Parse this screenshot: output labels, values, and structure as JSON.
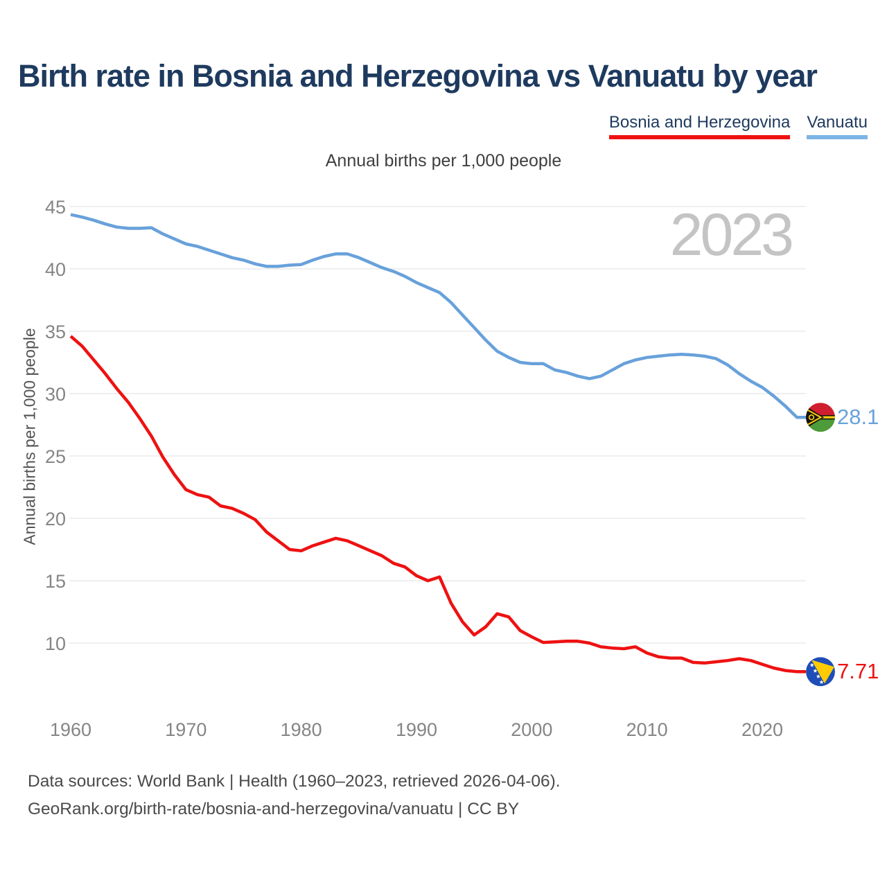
{
  "title": "Birth rate in Bosnia and Herzegovina vs Vanuatu by year",
  "subtitle": "Annual births per 1,000 people",
  "watermark": "2023",
  "y_axis_title": "Annual births per 1,000 people",
  "legend": [
    {
      "label": "Bosnia and Herzegovina",
      "color": "#ee1111"
    },
    {
      "label": "Vanuatu",
      "color": "#7cb5e5"
    }
  ],
  "footer": {
    "line1": "Data sources: World Bank | Health (1960–2023, retrieved 2026-04-06).",
    "line2": "GeoRank.org/birth-rate/bosnia-and-herzegovina/vanuatu | CC BY"
  },
  "chart_data": {
    "type": "line",
    "title": "Birth rate in Bosnia and Herzegovina vs Vanuatu by year",
    "subtitle": "Annual births per 1,000 people",
    "ylabel": "Annual births per 1,000 people",
    "xlim": [
      1960,
      2023
    ],
    "ylim": [
      10,
      45
    ],
    "grid": true,
    "legend_position": "top-right",
    "x_ticks": [
      1960,
      1970,
      1980,
      1990,
      2000,
      2010,
      2020
    ],
    "y_ticks": [
      10,
      15,
      20,
      25,
      30,
      35,
      40,
      45
    ],
    "x": [
      1960,
      1961,
      1962,
      1963,
      1964,
      1965,
      1966,
      1967,
      1968,
      1969,
      1970,
      1971,
      1972,
      1973,
      1974,
      1975,
      1976,
      1977,
      1978,
      1979,
      1980,
      1981,
      1982,
      1983,
      1984,
      1985,
      1986,
      1987,
      1988,
      1989,
      1990,
      1991,
      1992,
      1993,
      1994,
      1995,
      1996,
      1997,
      1998,
      1999,
      2000,
      2001,
      2002,
      2003,
      2004,
      2005,
      2006,
      2007,
      2008,
      2009,
      2010,
      2011,
      2012,
      2013,
      2014,
      2015,
      2016,
      2017,
      2018,
      2019,
      2020,
      2021,
      2022,
      2023
    ],
    "series": [
      {
        "name": "Vanuatu",
        "color": "#68a1db",
        "end_label": "28.1",
        "flag_icon": "vanuatu-flag-icon",
        "values": [
          44.35,
          44.15,
          43.9,
          43.6,
          43.35,
          43.25,
          43.25,
          43.3,
          42.8,
          42.4,
          42.0,
          41.8,
          41.5,
          41.2,
          40.9,
          40.7,
          40.4,
          40.2,
          40.2,
          40.3,
          40.35,
          40.7,
          41.0,
          41.2,
          41.2,
          40.9,
          40.5,
          40.1,
          39.8,
          39.4,
          38.9,
          38.5,
          38.1,
          37.3,
          36.3,
          35.3,
          34.3,
          33.4,
          32.9,
          32.5,
          32.4,
          32.4,
          31.9,
          31.7,
          31.4,
          31.2,
          31.4,
          31.9,
          32.4,
          32.7,
          32.9,
          33.0,
          33.1,
          33.15,
          33.1,
          33.0,
          32.8,
          32.3,
          31.6,
          31.0,
          30.5,
          29.8,
          29.0,
          28.1
        ]
      },
      {
        "name": "Bosnia and Herzegovina",
        "color": "#ee1111",
        "end_label": "7.71",
        "flag_icon": "bosnia-and-herzegovina-flag-icon",
        "values": [
          34.6,
          33.8,
          32.7,
          31.6,
          30.4,
          29.3,
          28.0,
          26.6,
          24.9,
          23.5,
          22.3,
          21.9,
          21.7,
          21.0,
          20.8,
          20.4,
          19.9,
          18.9,
          18.2,
          17.5,
          17.4,
          17.8,
          18.1,
          18.4,
          18.2,
          17.8,
          17.4,
          17.0,
          16.4,
          16.1,
          15.4,
          15.0,
          15.3,
          13.2,
          11.7,
          10.65,
          11.3,
          12.35,
          12.1,
          11.0,
          10.5,
          10.05,
          10.1,
          10.15,
          10.15,
          10.0,
          9.7,
          9.6,
          9.55,
          9.7,
          9.2,
          8.9,
          8.8,
          8.8,
          8.45,
          8.4,
          8.5,
          8.6,
          8.75,
          8.6,
          8.3,
          8.0,
          7.8,
          7.71
        ]
      }
    ]
  },
  "colors": {
    "title": "#1e3a5e",
    "watermark": "#c4c4c4",
    "grid": "#eaeaea",
    "tick_text": "#858585"
  }
}
